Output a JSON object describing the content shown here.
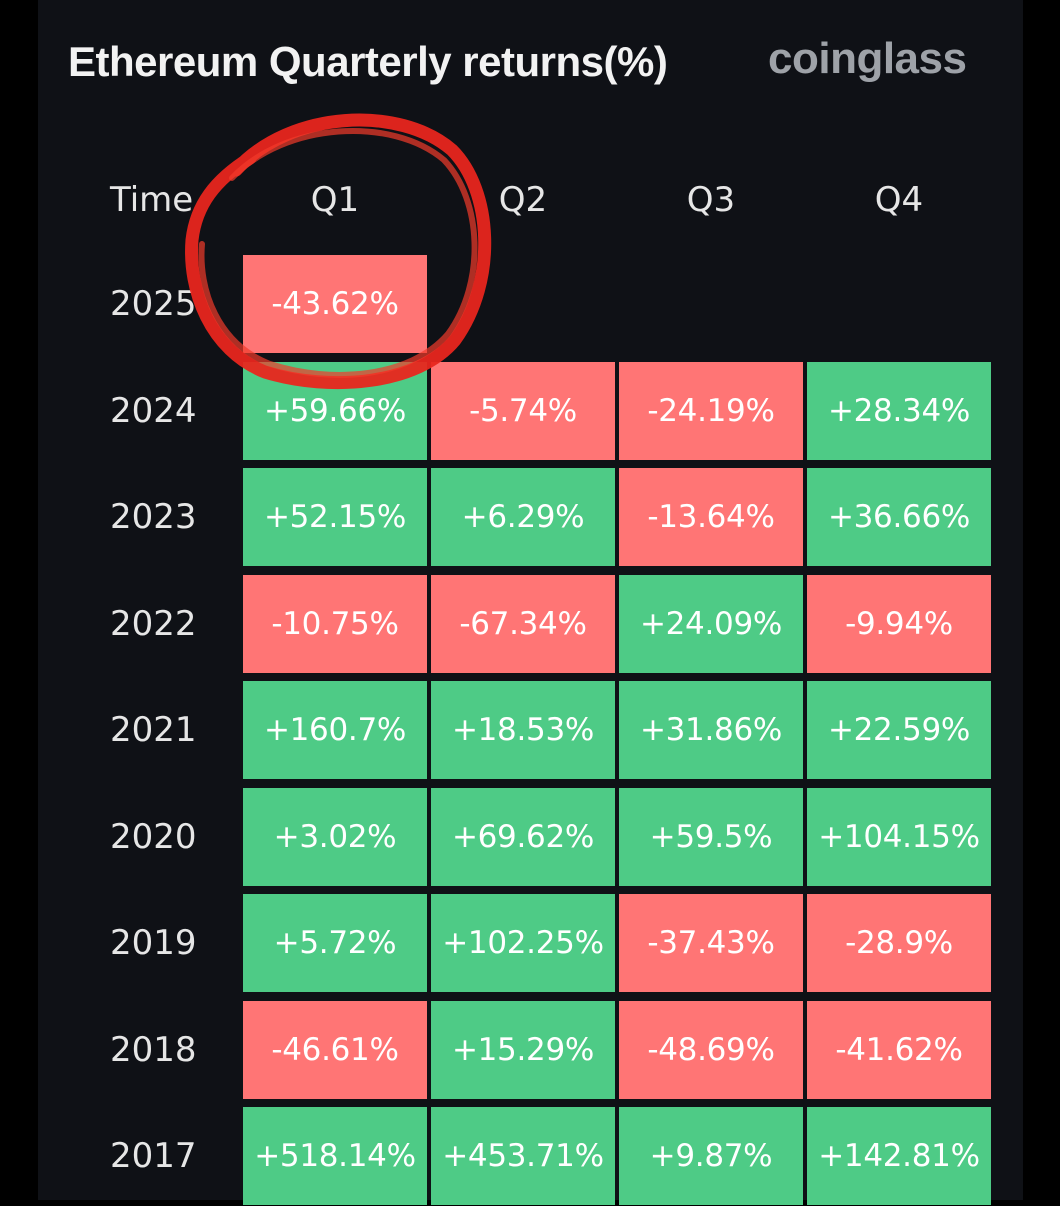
{
  "chart_data": {
    "type": "table",
    "title": "Ethereum Quarterly returns(%)",
    "brand": "coinglass",
    "corner_header": "Time",
    "columns": [
      "Q1",
      "Q2",
      "Q3",
      "Q4"
    ],
    "rows": [
      {
        "year": "2025",
        "values": [
          "-43.62%",
          null,
          null,
          null
        ]
      },
      {
        "year": "2024",
        "values": [
          "+59.66%",
          "-5.74%",
          "-24.19%",
          "+28.34%"
        ]
      },
      {
        "year": "2023",
        "values": [
          "+52.15%",
          "+6.29%",
          "-13.64%",
          "+36.66%"
        ]
      },
      {
        "year": "2022",
        "values": [
          "-10.75%",
          "-67.34%",
          "+24.09%",
          "-9.94%"
        ]
      },
      {
        "year": "2021",
        "values": [
          "+160.7%",
          "+18.53%",
          "+31.86%",
          "+22.59%"
        ]
      },
      {
        "year": "2020",
        "values": [
          "+3.02%",
          "+69.62%",
          "+59.5%",
          "+104.15%"
        ]
      },
      {
        "year": "2019",
        "values": [
          "+5.72%",
          "+102.25%",
          "-37.43%",
          "-28.9%"
        ]
      },
      {
        "year": "2018",
        "values": [
          "-46.61%",
          "+15.29%",
          "-48.69%",
          "-41.62%"
        ]
      },
      {
        "year": "2017",
        "values": [
          "+518.14%",
          "+453.71%",
          "+9.87%",
          "+142.81%"
        ]
      }
    ],
    "colors": {
      "positive": "#4ecb86",
      "negative": "#ff7575",
      "highlight_circle": "#e8261e"
    },
    "annotation": "hand-drawn red circle around 2025 Q1 value"
  }
}
